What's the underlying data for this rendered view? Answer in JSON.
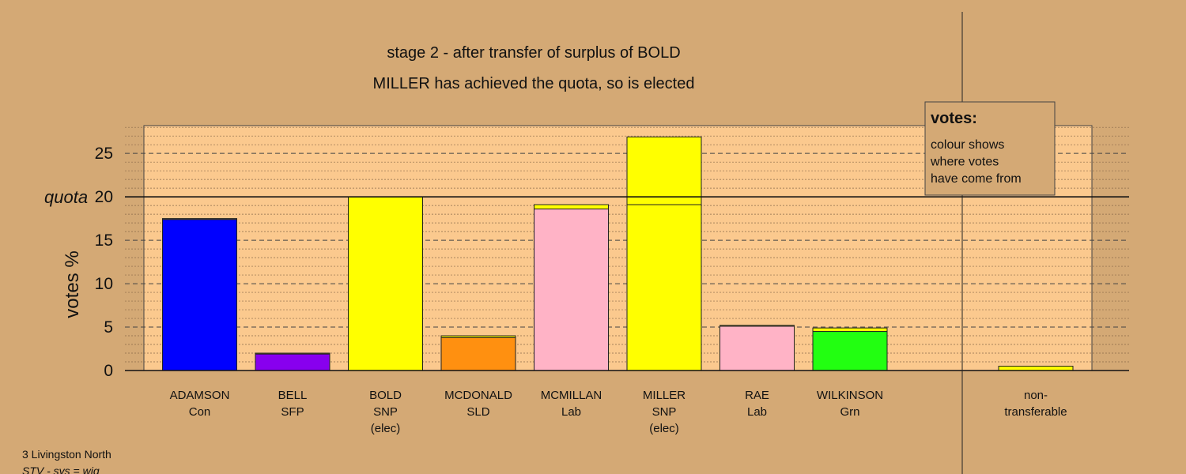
{
  "chart_data": {
    "type": "bar",
    "title": "stage 2 - after transfer of surplus of BOLD",
    "subtitle": "MILLER has achieved the quota, so is elected",
    "ylabel": "votes %",
    "ylim": [
      0,
      28
    ],
    "yticks": [
      0,
      5,
      10,
      15,
      20,
      25
    ],
    "quota": 20,
    "quota_label": "quota",
    "grid": true,
    "legend_box": {
      "title": "votes:",
      "lines": [
        "colour shows",
        "where votes",
        "have come from"
      ]
    },
    "candidates": [
      {
        "name": "ADAMSON",
        "party": "Con",
        "note": "",
        "segments": [
          {
            "value": 17.4,
            "color": "#0000ff"
          },
          {
            "value": 0.1,
            "color": "#ffff00"
          }
        ]
      },
      {
        "name": "BELL",
        "party": "SFP",
        "note": "",
        "segments": [
          {
            "value": 1.9,
            "color": "#8800ee"
          },
          {
            "value": 0.1,
            "color": "#ffff00"
          }
        ]
      },
      {
        "name": "BOLD",
        "party": "SNP",
        "note": "(elec)",
        "segments": [
          {
            "value": 20.0,
            "color": "#ffff00"
          }
        ]
      },
      {
        "name": "MCDONALD",
        "party": "SLD",
        "note": "",
        "segments": [
          {
            "value": 3.8,
            "color": "#ff9010"
          },
          {
            "value": 0.2,
            "color": "#ffff00"
          }
        ]
      },
      {
        "name": "MCMILLAN",
        "party": "Lab",
        "note": "",
        "segments": [
          {
            "value": 18.6,
            "color": "#ffb3c6"
          },
          {
            "value": 0.5,
            "color": "#ffff00"
          }
        ]
      },
      {
        "name": "MILLER",
        "party": "SNP",
        "note": "(elec)",
        "segments": [
          {
            "value": 19.1,
            "color": "#ffff00"
          },
          {
            "value": 7.8,
            "color": "#ffff00"
          }
        ]
      },
      {
        "name": "RAE",
        "party": "Lab",
        "note": "",
        "segments": [
          {
            "value": 5.1,
            "color": "#ffb3c6"
          },
          {
            "value": 0.1,
            "color": "#ffff00"
          }
        ]
      },
      {
        "name": "WILKINSON",
        "party": "Grn",
        "note": "",
        "segments": [
          {
            "value": 4.5,
            "color": "#22ff11"
          },
          {
            "value": 0.4,
            "color": "#ffff00"
          }
        ]
      }
    ],
    "nontransferable": {
      "label_line1": "non-",
      "label_line2": "transferable",
      "value": 0.5,
      "color": "#ffff00"
    }
  },
  "footer": {
    "line1": "3 Livingston North",
    "line2": "STV - sys = wig"
  },
  "colors": {
    "background": "#d4a975",
    "plot_bg": "#fbc98e"
  }
}
